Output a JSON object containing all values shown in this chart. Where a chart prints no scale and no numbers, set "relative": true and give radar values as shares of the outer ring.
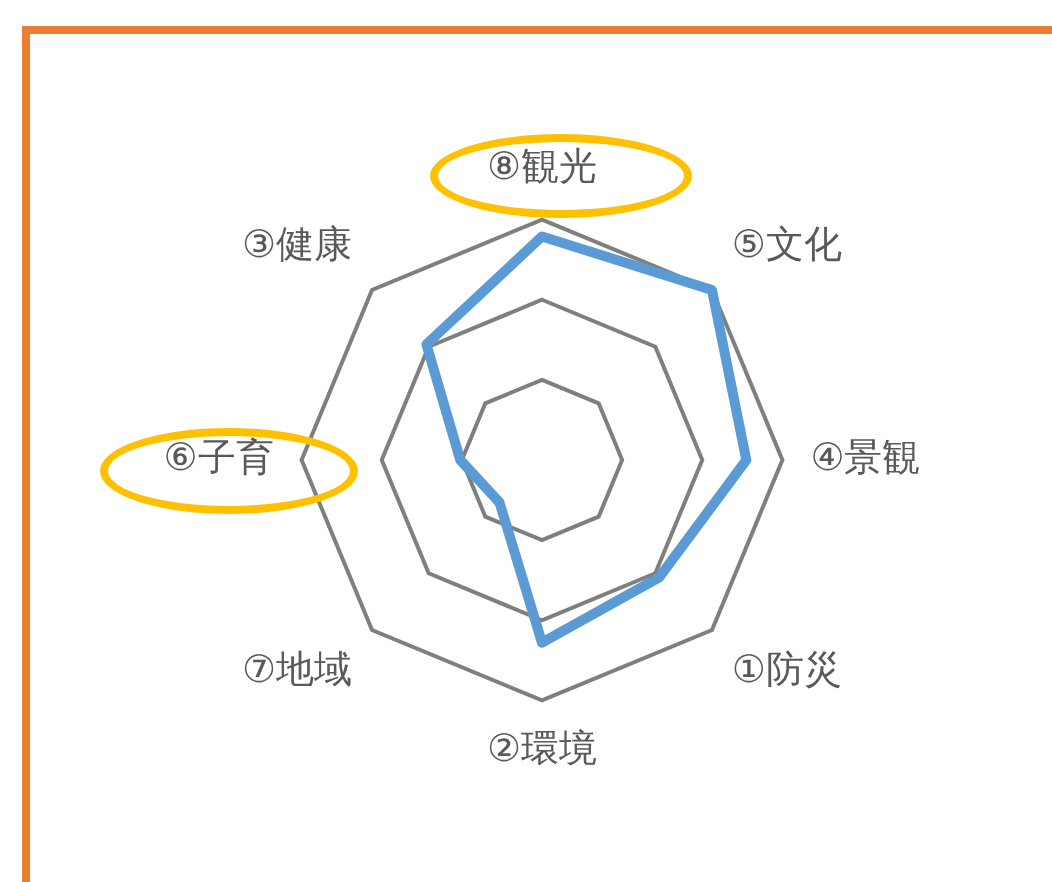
{
  "chart_data": {
    "type": "radar",
    "relative": true,
    "categories": [
      "⑧観光",
      "⑤文化",
      "④景観",
      "①防災",
      "②環境",
      "⑦地域",
      "⑥子育",
      "③健康"
    ],
    "series": [
      {
        "color": "#5b9bd5",
        "values": [
          0.93,
          1.0,
          0.85,
          0.69,
          0.76,
          0.25,
          0.34,
          0.68
        ]
      }
    ],
    "grid": true,
    "legend": false,
    "marker": "none",
    "line_style": "solid"
  }
}
